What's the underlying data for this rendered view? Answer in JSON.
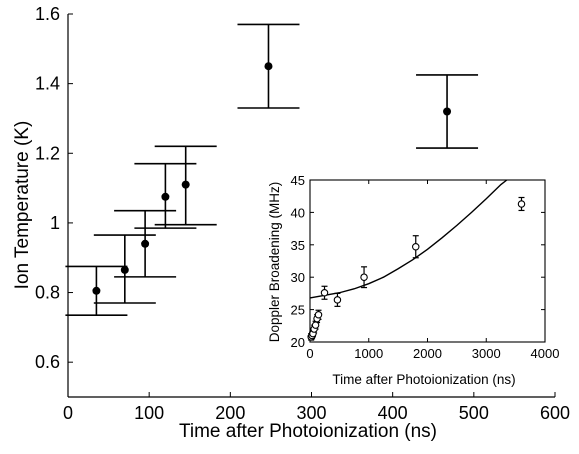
{
  "chart_data": [
    {
      "type": "scatter",
      "xlabel": "Time after Photoionization (ns)",
      "ylabel": "Ion Temperature (K)",
      "xlim": [
        0,
        600
      ],
      "ylim": [
        0.5,
        1.6
      ],
      "xticks": [
        0,
        100,
        200,
        300,
        400,
        500,
        600
      ],
      "yticks": [
        0.6,
        0.8,
        1,
        1.2,
        1.4,
        1.6
      ],
      "marker": "filled-circle",
      "series": [
        {
          "points": [
            {
              "x": 35,
              "y": 0.805,
              "err_low": 0.07,
              "err_high": 0.07
            },
            {
              "x": 70,
              "y": 0.865,
              "err_low": 0.095,
              "err_high": 0.1
            },
            {
              "x": 95,
              "y": 0.94,
              "err_low": 0.095,
              "err_high": 0.095
            },
            {
              "x": 120,
              "y": 1.075,
              "err_low": 0.09,
              "err_high": 0.095
            },
            {
              "x": 145,
              "y": 1.11,
              "err_low": 0.115,
              "err_high": 0.11
            },
            {
              "x": 247,
              "y": 1.45,
              "err_low": 0.12,
              "err_high": 0.12
            },
            {
              "x": 467,
              "y": 1.32,
              "err_low": 0.105,
              "err_high": 0.105
            }
          ]
        }
      ]
    },
    {
      "type": "scatter",
      "xlabel": "Time after Photoionization (ns)",
      "ylabel": "Doppler Broadening (MHz)",
      "xlim": [
        0,
        4000
      ],
      "ylim": [
        20,
        45
      ],
      "xticks": [
        0,
        1000,
        2000,
        3000,
        4000
      ],
      "yticks": [
        20,
        25,
        30,
        35,
        40,
        45
      ],
      "marker": "open-circle",
      "series": [
        {
          "points": [
            {
              "x": 20,
              "y": 20.8,
              "err": 0.5
            },
            {
              "x": 35,
              "y": 21.0,
              "err": 0.5
            },
            {
              "x": 50,
              "y": 21.3,
              "err": 0.5
            },
            {
              "x": 70,
              "y": 22.0,
              "err": 0.6
            },
            {
              "x": 95,
              "y": 22.6,
              "err": 0.6
            },
            {
              "x": 120,
              "y": 23.6,
              "err": 0.6
            },
            {
              "x": 145,
              "y": 24.2,
              "err": 0.7
            },
            {
              "x": 247,
              "y": 27.6,
              "err": 1.0
            },
            {
              "x": 467,
              "y": 26.5,
              "err": 1.0
            },
            {
              "x": 920,
              "y": 30.0,
              "err": 1.6
            },
            {
              "x": 1800,
              "y": 34.7,
              "err": 1.7
            },
            {
              "x": 3600,
              "y": 41.3,
              "err": 1.0
            }
          ]
        }
      ],
      "fit_curve": {
        "x": [
          0,
          250,
          500,
          750,
          1000,
          1250,
          1500,
          1750,
          2000,
          2250,
          2500,
          2750,
          3000,
          3250,
          3350
        ],
        "y": [
          26.8,
          27.2,
          27.6,
          28.2,
          29.0,
          30.0,
          31.3,
          32.7,
          34.3,
          36.1,
          38.0,
          40.0,
          42.1,
          44.3,
          45.0
        ]
      }
    }
  ]
}
